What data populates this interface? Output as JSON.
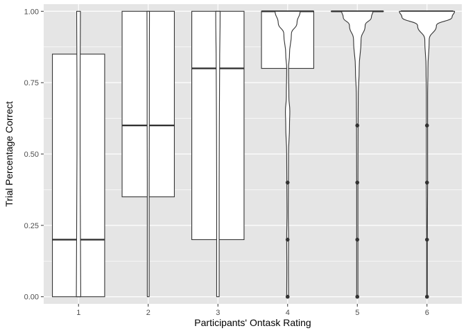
{
  "chart_data": {
    "type": "box",
    "subtype": "box-and-violin",
    "title": "",
    "xlabel": "Participants' Ontask Rating",
    "ylabel": "Trial Percentage Correct",
    "categories": [
      "1",
      "2",
      "3",
      "4",
      "5",
      "6"
    ],
    "ylim": [
      -0.025,
      1.025
    ],
    "yticks": [
      0.0,
      0.25,
      0.5,
      0.75,
      1.0
    ],
    "ytick_labels": [
      "0.00",
      "0.25",
      "0.50",
      "0.75",
      "1.00"
    ],
    "grid": true,
    "legend": "none",
    "colors": {
      "panel": "#e5e5e5",
      "grid": "#ffffff",
      "box_fill": "#ffffff",
      "stroke": "#333333",
      "point": "#333333",
      "axis_text": "#4d4d4d"
    },
    "boxes": [
      {
        "category": "1",
        "q1": 0.0,
        "median": 0.2,
        "q3": 0.85
      },
      {
        "category": "2",
        "q1": 0.35,
        "median": 0.6,
        "q3": 1.0
      },
      {
        "category": "3",
        "q1": 0.2,
        "median": 0.8,
        "q3": 1.0
      },
      {
        "category": "4",
        "q1": 0.8,
        "median": 1.0,
        "q3": 1.0
      },
      {
        "category": "5",
        "q1": 1.0,
        "median": 1.0,
        "q3": 1.0
      },
      {
        "category": "6",
        "q1": 1.0,
        "median": 1.0,
        "q3": 1.0
      }
    ],
    "violins": [
      {
        "category": "1",
        "profile": [
          [
            0.0,
            0.07
          ],
          [
            0.25,
            0.06
          ],
          [
            0.5,
            0.05
          ],
          [
            0.75,
            0.05
          ],
          [
            1.0,
            0.06
          ]
        ]
      },
      {
        "category": "2",
        "profile": [
          [
            0.0,
            0.03
          ],
          [
            0.2,
            0.03
          ],
          [
            0.4,
            0.03
          ],
          [
            0.6,
            0.035
          ],
          [
            0.8,
            0.035
          ],
          [
            1.0,
            0.04
          ]
        ]
      },
      {
        "category": "3",
        "profile": [
          [
            0.0,
            0.04
          ],
          [
            0.2,
            0.04
          ],
          [
            0.4,
            0.04
          ],
          [
            0.6,
            0.045
          ],
          [
            0.8,
            0.055
          ],
          [
            1.0,
            0.07
          ]
        ]
      },
      {
        "category": "4",
        "profile": [
          [
            0.0,
            0.03
          ],
          [
            0.1,
            0.025
          ],
          [
            0.2,
            0.03
          ],
          [
            0.3,
            0.02
          ],
          [
            0.4,
            0.025
          ],
          [
            0.5,
            0.03
          ],
          [
            0.6,
            0.06
          ],
          [
            0.65,
            0.07
          ],
          [
            0.7,
            0.04
          ],
          [
            0.8,
            0.03
          ],
          [
            0.85,
            0.06
          ],
          [
            0.92,
            0.12
          ],
          [
            0.96,
            0.3
          ],
          [
            1.0,
            0.4
          ]
        ]
      },
      {
        "category": "5",
        "profile": [
          [
            0.0,
            0.02
          ],
          [
            0.2,
            0.02
          ],
          [
            0.4,
            0.02
          ],
          [
            0.6,
            0.025
          ],
          [
            0.7,
            0.03
          ],
          [
            0.8,
            0.06
          ],
          [
            0.9,
            0.12
          ],
          [
            0.95,
            0.25
          ],
          [
            0.98,
            0.45
          ],
          [
            1.0,
            0.5
          ]
        ]
      },
      {
        "category": "6",
        "profile": [
          [
            0.0,
            0.01
          ],
          [
            0.2,
            0.01
          ],
          [
            0.4,
            0.02
          ],
          [
            0.6,
            0.02
          ],
          [
            0.7,
            0.02
          ],
          [
            0.8,
            0.03
          ],
          [
            0.9,
            0.07
          ],
          [
            0.95,
            0.3
          ],
          [
            0.98,
            0.8
          ],
          [
            1.0,
            0.88
          ]
        ]
      }
    ],
    "outliers": [
      {
        "category": "4",
        "values": [
          0.0,
          0.2,
          0.4
        ]
      },
      {
        "category": "5",
        "values": [
          0.0,
          0.2,
          0.4,
          0.6
        ]
      },
      {
        "category": "6",
        "values": [
          0.0,
          0.2,
          0.4,
          0.6
        ]
      }
    ]
  }
}
